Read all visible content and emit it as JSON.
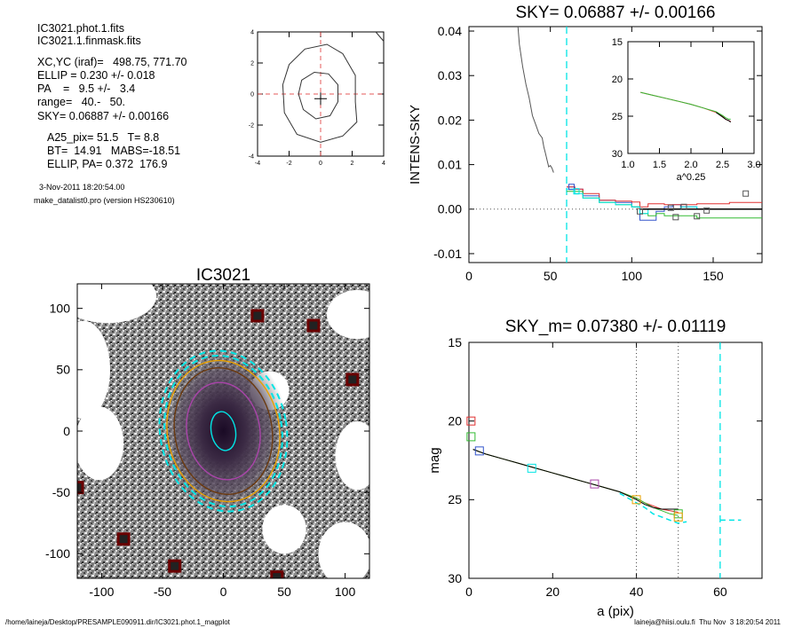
{
  "header": {
    "lines": [
      "IC3021.phot.1.fits",
      "IC3021.1.finmask.fits",
      "XC,YC (iraf)=   498.75, 771.70",
      "ELLIP = 0.230 +/- 0.018",
      "PA    =   9.5 +/-   3.4",
      "range=   40.-   50.",
      "SKY= 0.06887 +/- 0.00166",
      "A25_pix= 51.5   T= 8.8",
      "BT=  14.91   MABS=-18.51",
      "ELLIP, PA= 0.372  176.9"
    ],
    "date": "3-Nov-2011 18:20:54.00",
    "program": "make_datalist0.pro (version HS230610)"
  },
  "footer": {
    "path": "/home/laineja/Desktop/PRESAMPLE090911.dir/IC3021.phot.1_magplot",
    "signature": "laineja@hiisi.oulu.fi  Thu Nov  3 18:20:54 2011"
  },
  "colors": {
    "cyan": "#00e5e5",
    "red": "#e03030",
    "green": "#33bb33",
    "blue": "#3355cc",
    "orange": "#e8a000",
    "purple": "#aa44aa",
    "brown": "#6b3a10",
    "darkred": "#6a0000"
  },
  "chart_data": [
    {
      "id": "contour",
      "type": "contour",
      "title": "",
      "xlim": [
        -4,
        4
      ],
      "ylim": [
        -4,
        4
      ],
      "x_ticks": [
        "-4",
        "-2",
        "0",
        "2",
        "4"
      ],
      "y_ticks": [
        "-4",
        "-2",
        "0",
        "2",
        "4"
      ],
      "crosshair_x": 0,
      "crosshair_y": 0,
      "outer_contour": [
        [
          -2.4,
          0.6
        ],
        [
          -2.0,
          1.9
        ],
        [
          -1.0,
          2.9
        ],
        [
          0.4,
          3.2
        ],
        [
          1.4,
          2.6
        ],
        [
          2.2,
          1.2
        ],
        [
          2.2,
          -0.5
        ],
        [
          2.3,
          -1.8
        ],
        [
          1.4,
          -2.7
        ],
        [
          0.0,
          -3.1
        ],
        [
          -1.5,
          -2.6
        ],
        [
          -2.3,
          -1.2
        ],
        [
          -2.4,
          0.6
        ]
      ],
      "inner_contour": [
        [
          -1.4,
          0.0
        ],
        [
          -1.2,
          0.9
        ],
        [
          -0.4,
          1.4
        ],
        [
          0.5,
          1.3
        ],
        [
          1.1,
          0.6
        ],
        [
          1.1,
          -0.5
        ],
        [
          0.6,
          -1.4
        ],
        [
          -0.3,
          -1.6
        ],
        [
          -1.1,
          -1.0
        ],
        [
          -1.4,
          0.0
        ]
      ],
      "corner_line": [
        [
          3.5,
          4.0
        ],
        [
          4.0,
          3.4
        ]
      ]
    },
    {
      "id": "intens",
      "type": "line",
      "title": "SKY= 0.06887 +/- 0.00166",
      "xlabel": "",
      "ylabel": "INTENS-SKY",
      "xlim": [
        0,
        180
      ],
      "ylim": [
        -0.012,
        0.041
      ],
      "x_ticks": [
        "0",
        "50",
        "100",
        "150"
      ],
      "y_ticks": [
        "-0.01",
        "0.00",
        "0.01",
        "0.02",
        "0.03",
        "0.04"
      ],
      "grid": false,
      "vline_x": 60,
      "series": [
        {
          "color": "gray",
          "x": [
            30,
            31,
            33,
            35,
            37,
            39,
            41,
            43,
            45,
            46,
            47,
            48,
            49,
            50,
            51,
            52
          ],
          "y": [
            0.0415,
            0.037,
            0.032,
            0.028,
            0.025,
            0.021,
            0.019,
            0.017,
            0.016,
            0.014,
            0.0125,
            0.011,
            0.0095,
            0.0098,
            0.0092,
            0.0082
          ]
        },
        {
          "color": "blue",
          "x": [
            60,
            65,
            70,
            80,
            90,
            100,
            105,
            110,
            115,
            120,
            125,
            130,
            135,
            140
          ],
          "y": [
            0.005,
            0.0045,
            0.003,
            0.002,
            0.0015,
            0.0005,
            -0.0025,
            -0.0025,
            -0.0005,
            0.0005,
            0.001,
            0.0005,
            0.0005,
            0.0
          ]
        },
        {
          "color": "red",
          "x": [
            60,
            65,
            70,
            80,
            90,
            100,
            105,
            110,
            120,
            130,
            140,
            150,
            160,
            180
          ],
          "y": [
            0.005,
            0.0045,
            0.0035,
            0.002,
            0.0018,
            0.0016,
            0.0005,
            0.0012,
            0.001,
            0.001,
            0.0012,
            0.0012,
            0.0015,
            0.0015
          ]
        },
        {
          "color": "green",
          "x": [
            60,
            65,
            70,
            80,
            90,
            100,
            105,
            110,
            115,
            120,
            130,
            140,
            160,
            180
          ],
          "y": [
            0.004,
            0.004,
            0.0025,
            0.0015,
            0.001,
            0.0005,
            -0.001,
            -0.0015,
            -0.001,
            -0.0015,
            -0.0015,
            -0.002,
            -0.002,
            -0.002
          ]
        },
        {
          "color": "cyan",
          "x": [
            60,
            65,
            70,
            80,
            90,
            100,
            105,
            110,
            120,
            130,
            140
          ],
          "y": [
            0.0045,
            0.0035,
            0.0025,
            0.0015,
            0.001,
            0.0005,
            -0.001,
            0.0,
            0.0,
            0.0005,
            0.0
          ]
        },
        {
          "color": "black",
          "x": [
            105,
            180
          ],
          "y": [
            0.0,
            0.0
          ]
        }
      ],
      "squares": [
        {
          "color": "gray",
          "x": 105,
          "y": -0.0005
        },
        {
          "color": "gray",
          "x": 124,
          "y": 0.0003
        },
        {
          "color": "gray",
          "x": 127,
          "y": -0.0018
        },
        {
          "color": "gray",
          "x": 132,
          "y": 0.0005
        },
        {
          "color": "gray",
          "x": 140,
          "y": -0.0016
        },
        {
          "color": "gray",
          "x": 146,
          "y": -0.0003
        },
        {
          "color": "gray",
          "x": 170,
          "y": 0.0035
        },
        {
          "color": "blue",
          "x": 63,
          "y": 0.005
        },
        {
          "color": "cyan",
          "x": 66,
          "y": 0.004
        }
      ],
      "inset": {
        "xlabel": "a^0.25",
        "xlim": [
          1.0,
          3.0
        ],
        "ylim": [
          15,
          30
        ],
        "x_ticks": [
          "1.0",
          "1.5",
          "2.0",
          "2.5",
          "3.0"
        ],
        "y_ticks": [
          "15",
          "20",
          "25",
          "30"
        ],
        "series": [
          {
            "color": "red",
            "x": [
              1.2,
              1.4,
              1.6,
              1.8,
              2.0,
              2.2,
              2.4,
              2.5,
              2.55,
              2.6,
              2.63
            ],
            "y": [
              21.8,
              22.2,
              22.6,
              23.0,
              23.4,
              23.9,
              24.5,
              25.0,
              25.4,
              25.6,
              25.7
            ]
          },
          {
            "color": "green",
            "x": [
              1.2,
              1.4,
              1.6,
              1.8,
              2.0,
              2.2,
              2.4,
              2.5,
              2.55,
              2.6,
              2.63
            ],
            "y": [
              21.8,
              22.2,
              22.6,
              23.0,
              23.4,
              23.9,
              24.4,
              24.9,
              25.2,
              25.4,
              25.4
            ]
          },
          {
            "color": "black",
            "x": [
              2.4,
              2.5,
              2.55,
              2.6,
              2.63
            ],
            "y": [
              24.5,
              25.1,
              25.4,
              25.6,
              25.8
            ]
          }
        ]
      }
    },
    {
      "id": "image",
      "type": "image",
      "title": "IC3021",
      "xlim": [
        -120,
        120
      ],
      "ylim": [
        -120,
        120
      ],
      "x_ticks": [
        "-100",
        "-50",
        "0",
        "50",
        "100"
      ],
      "y_ticks": [
        "-100",
        "-50",
        "0",
        "50",
        "100"
      ],
      "galaxy_center": [
        0,
        0
      ],
      "ellipses": [
        {
          "color": "cyan",
          "a": 10,
          "b": 16,
          "style": "solid"
        },
        {
          "color": "purple",
          "a": 30,
          "b": 40,
          "style": "solid"
        },
        {
          "color": "brown",
          "a": 40,
          "b": 52,
          "style": "solid"
        },
        {
          "color": "orange",
          "a": 46,
          "b": 58,
          "style": "solid"
        },
        {
          "color": "cyan",
          "a": 48,
          "b": 62,
          "style": "dashed"
        },
        {
          "color": "cyan",
          "a": 52,
          "b": 66,
          "style": "dashed"
        }
      ],
      "mask_squares": [
        [
          28,
          94
        ],
        [
          74,
          86
        ],
        [
          106,
          42
        ],
        [
          -82,
          -88
        ],
        [
          -40,
          -110
        ],
        [
          44,
          -119
        ],
        [
          -120,
          -46
        ]
      ],
      "mask_holes": [
        [
          -95,
          110,
          40,
          22
        ],
        [
          110,
          95,
          25,
          20
        ],
        [
          -115,
          50,
          22,
          40
        ],
        [
          -102,
          -10,
          20,
          30
        ],
        [
          110,
          -20,
          18,
          28
        ],
        [
          100,
          -100,
          22,
          26
        ],
        [
          50,
          -80,
          18,
          20
        ]
      ]
    },
    {
      "id": "mag",
      "type": "line",
      "title": "SKY_m=  0.07380 +/- 0.01119",
      "xlabel": "a (pix)",
      "ylabel": "mag",
      "xlim": [
        0,
        70
      ],
      "ylim": [
        15,
        30
      ],
      "x_ticks": [
        "0",
        "20",
        "40",
        "60"
      ],
      "y_ticks": [
        "15",
        "20",
        "25",
        "30"
      ],
      "grid": false,
      "vlines_dotted": [
        40,
        50
      ],
      "vline_dashed": 60,
      "series": [
        {
          "color": "red",
          "x": [
            1,
            2,
            4,
            8,
            12,
            16,
            20,
            24,
            28,
            32,
            36,
            40,
            42,
            44,
            46,
            48,
            50
          ],
          "y": [
            21.8,
            21.9,
            22.1,
            22.4,
            22.7,
            23.0,
            23.3,
            23.6,
            23.9,
            24.2,
            24.5,
            24.9,
            25.2,
            25.4,
            25.6,
            25.7,
            25.8
          ]
        },
        {
          "color": "green",
          "x": [
            1,
            2,
            4,
            8,
            12,
            16,
            20,
            24,
            28,
            32,
            36,
            40,
            42,
            44,
            46,
            48,
            50
          ],
          "y": [
            21.8,
            21.9,
            22.1,
            22.4,
            22.7,
            23.0,
            23.3,
            23.6,
            23.9,
            24.2,
            24.5,
            24.9,
            25.2,
            25.5,
            25.7,
            25.9,
            26.0
          ]
        },
        {
          "color": "black",
          "x": [
            1,
            2,
            4,
            8,
            12,
            16,
            20,
            24,
            28,
            32,
            36,
            40,
            42,
            44,
            46,
            48,
            50
          ],
          "y": [
            21.8,
            21.9,
            22.1,
            22.4,
            22.7,
            23.0,
            23.3,
            23.6,
            23.9,
            24.2,
            24.5,
            25.0,
            25.3,
            25.5,
            25.6,
            25.6,
            25.6
          ]
        },
        {
          "color": "cyan",
          "x": [
            36,
            40,
            42,
            44,
            46,
            48,
            50,
            52
          ],
          "y": [
            24.6,
            25.2,
            25.5,
            25.9,
            26.1,
            26.3,
            26.5,
            26.4
          ],
          "style": "dashed"
        },
        {
          "color": "cyan",
          "x": [
            60,
            65
          ],
          "y": [
            26.3,
            26.3
          ],
          "style": "dashed"
        }
      ],
      "squares": [
        {
          "color": "red",
          "x": 0.5,
          "y": 20.0
        },
        {
          "color": "green",
          "x": 0.5,
          "y": 21.0
        },
        {
          "color": "blue",
          "x": 2.5,
          "y": 21.9
        },
        {
          "color": "cyan",
          "x": 15,
          "y": 23.0
        },
        {
          "color": "purple",
          "x": 30,
          "y": 24.0
        },
        {
          "color": "orange",
          "x": 40,
          "y": 25.0
        },
        {
          "color": "green",
          "x": 50,
          "y": 25.9
        },
        {
          "color": "orange",
          "x": 50,
          "y": 26.1
        }
      ]
    }
  ]
}
